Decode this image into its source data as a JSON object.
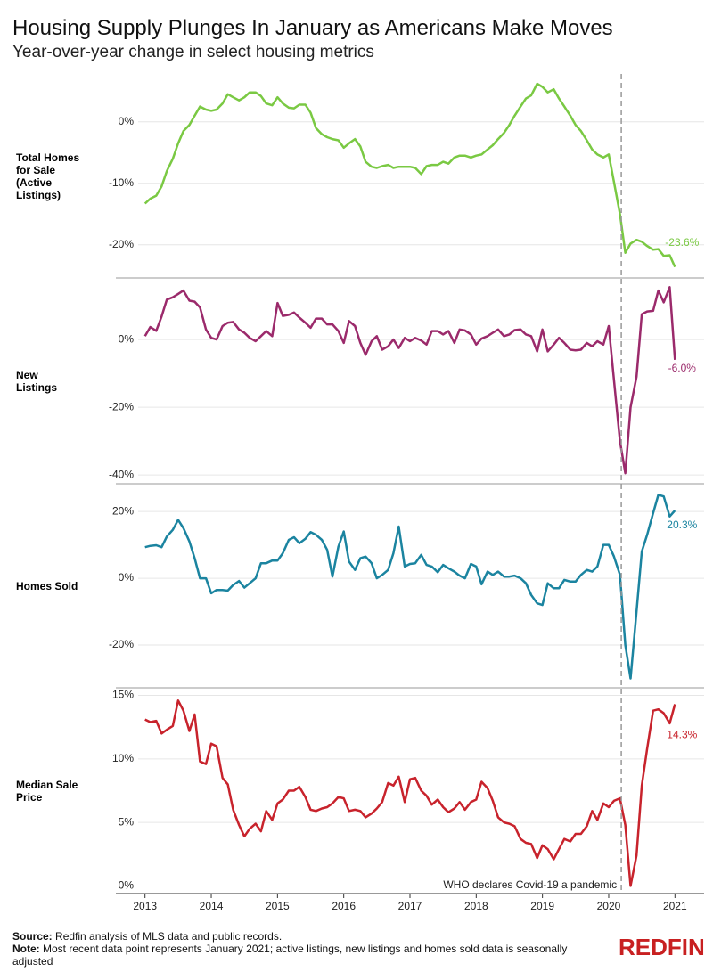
{
  "title": "Housing Supply Plunges In January as Americans Make Moves",
  "subtitle": "Year-over-year change in select housing metrics",
  "annotation": {
    "text": "WHO declares Covid-19 a pandemic",
    "x": 2020.19
  },
  "source_label": "Source:",
  "source": "Redfin analysis of MLS data and public records.",
  "note_label": "Note:",
  "note": "Most recent data point represents January 2021; active listings, new listings and homes sold data is seasonally adjusted",
  "logo": "REDFIN",
  "chart_data": [
    {
      "type": "line",
      "xlim": [
        2012.56,
        2021.44
      ],
      "x": [
        2013,
        2013.08,
        2013.17,
        2013.25,
        2013.33,
        2013.42,
        2013.5,
        2013.58,
        2013.67,
        2013.75,
        2013.83,
        2013.92,
        2014,
        2014.08,
        2014.17,
        2014.25,
        2014.33,
        2014.42,
        2014.5,
        2014.58,
        2014.67,
        2014.75,
        2014.83,
        2014.92,
        2015,
        2015.08,
        2015.17,
        2015.25,
        2015.33,
        2015.42,
        2015.5,
        2015.58,
        2015.67,
        2015.75,
        2015.83,
        2015.92,
        2016,
        2016.08,
        2016.17,
        2016.25,
        2016.33,
        2016.42,
        2016.5,
        2016.58,
        2016.67,
        2016.75,
        2016.83,
        2016.92,
        2017,
        2017.08,
        2017.17,
        2017.25,
        2017.33,
        2017.42,
        2017.5,
        2017.58,
        2017.67,
        2017.75,
        2017.83,
        2017.92,
        2018,
        2018.08,
        2018.17,
        2018.25,
        2018.33,
        2018.42,
        2018.5,
        2018.58,
        2018.67,
        2018.75,
        2018.83,
        2018.92,
        2019,
        2019.08,
        2019.17,
        2019.25,
        2019.33,
        2019.42,
        2019.5,
        2019.58,
        2019.67,
        2019.75,
        2019.83,
        2019.92,
        2020,
        2020.08,
        2020.17,
        2020.25,
        2020.33,
        2020.42,
        2020.5,
        2020.58,
        2020.67,
        2020.75,
        2020.83,
        2020.92,
        2021
      ],
      "series": [
        {
          "name": "Total Homes for Sale (Active Listings)",
          "color": "#7ac943",
          "values": [
            -13.3,
            -12.5,
            -12,
            -10.5,
            -8,
            -6,
            -3.5,
            -1.5,
            -0.5,
            1,
            2.5,
            2,
            1.8,
            2,
            3,
            4.5,
            4,
            3.5,
            4,
            4.8,
            4.8,
            4.2,
            3,
            2.7,
            4,
            3,
            2.3,
            2.2,
            2.8,
            2.8,
            1.5,
            -1,
            -2,
            -2.5,
            -2.8,
            -3,
            -4.2,
            -3.5,
            -2.8,
            -4,
            -6.5,
            -7.3,
            -7.5,
            -7.2,
            -7,
            -7.5,
            -7.3,
            -7.3,
            -7.3,
            -7.5,
            -8.5,
            -7.2,
            -7,
            -7,
            -6.5,
            -6.8,
            -5.8,
            -5.5,
            -5.5,
            -5.8,
            -5.5,
            -5.3,
            -4.5,
            -3.8,
            -2.8,
            -1.8,
            -0.5,
            1,
            2.5,
            3.8,
            4.3,
            6.2,
            5.7,
            4.8,
            5.3,
            3.8,
            2.5,
            1,
            -0.5,
            -1.5,
            -3,
            -4.5,
            -5.3,
            -5.8,
            -5.3,
            -9.8,
            -15,
            -21.3,
            -19.8,
            -19.2,
            -19.5,
            -20.2,
            -20.8,
            -20.7,
            -21.8,
            -21.7,
            -23.6
          ],
          "end_label": "-23.6%"
        }
      ],
      "ylim": [
        -25.4,
        7.8
      ],
      "yticks": [
        {
          "value": 0,
          "label": "0%"
        },
        {
          "value": -10,
          "label": "-10%"
        },
        {
          "value": -20,
          "label": "-20%"
        }
      ]
    },
    {
      "type": "line",
      "xlim": [
        2012.56,
        2021.44
      ],
      "x": [
        2013,
        2013.08,
        2013.17,
        2013.25,
        2013.33,
        2013.42,
        2013.5,
        2013.58,
        2013.67,
        2013.75,
        2013.83,
        2013.92,
        2014,
        2014.08,
        2014.17,
        2014.25,
        2014.33,
        2014.42,
        2014.5,
        2014.58,
        2014.67,
        2014.75,
        2014.83,
        2014.92,
        2015,
        2015.08,
        2015.17,
        2015.25,
        2015.33,
        2015.42,
        2015.5,
        2015.58,
        2015.67,
        2015.75,
        2015.83,
        2015.92,
        2016,
        2016.08,
        2016.17,
        2016.25,
        2016.33,
        2016.42,
        2016.5,
        2016.58,
        2016.67,
        2016.75,
        2016.83,
        2016.92,
        2017,
        2017.08,
        2017.17,
        2017.25,
        2017.33,
        2017.42,
        2017.5,
        2017.58,
        2017.67,
        2017.75,
        2017.83,
        2017.92,
        2018,
        2018.08,
        2018.17,
        2018.25,
        2018.33,
        2018.42,
        2018.5,
        2018.58,
        2018.67,
        2018.75,
        2018.83,
        2018.92,
        2019,
        2019.08,
        2019.17,
        2019.25,
        2019.33,
        2019.42,
        2019.5,
        2019.58,
        2019.67,
        2019.75,
        2019.83,
        2019.92,
        2020,
        2020.08,
        2020.17,
        2020.25,
        2020.33,
        2020.42,
        2020.5,
        2020.58,
        2020.67,
        2020.75,
        2020.83,
        2020.92,
        2021
      ],
      "series": [
        {
          "name": "New Listings",
          "color": "#9b2a6b",
          "values": [
            1,
            3.7,
            2.6,
            6.8,
            11.8,
            12.5,
            13.5,
            14.5,
            11.5,
            11.2,
            9.5,
            3,
            0.5,
            0,
            4,
            5,
            5.2,
            3,
            2,
            0.5,
            -0.5,
            1,
            2.5,
            1,
            10.8,
            7,
            7.3,
            8,
            6.5,
            5,
            3.5,
            6.2,
            6.2,
            4.5,
            4.5,
            2.5,
            -1,
            5.5,
            4,
            -1,
            -4.5,
            -0.5,
            1,
            -3,
            -2,
            0,
            -2.5,
            0.5,
            -0.5,
            0.5,
            -0.3,
            -1.5,
            2.5,
            2.5,
            1.5,
            2.5,
            -1,
            3,
            2.7,
            1.5,
            -1.5,
            0.3,
            1,
            2,
            3,
            1,
            1.5,
            2.8,
            3,
            1.5,
            1,
            -3.5,
            3,
            -3.5,
            -1.5,
            0.5,
            -1,
            -3,
            -3.2,
            -3,
            -1,
            -2,
            -0.5,
            -1.5,
            4,
            -12,
            -30,
            -39.5,
            -20,
            -11,
            7.5,
            8.3,
            8.5,
            14.5,
            11,
            15.5,
            -6
          ],
          "end_label": "-6.0%"
        }
      ],
      "ylim": [
        -42.6,
        18.2
      ],
      "yticks": [
        {
          "value": 0,
          "label": "0%"
        },
        {
          "value": -20,
          "label": "-20%"
        },
        {
          "value": -40,
          "label": "-40%"
        }
      ]
    },
    {
      "type": "line",
      "xlim": [
        2012.56,
        2021.44
      ],
      "x": [
        2013,
        2013.08,
        2013.17,
        2013.25,
        2013.33,
        2013.42,
        2013.5,
        2013.58,
        2013.67,
        2013.75,
        2013.83,
        2013.92,
        2014,
        2014.08,
        2014.17,
        2014.25,
        2014.33,
        2014.42,
        2014.5,
        2014.58,
        2014.67,
        2014.75,
        2014.83,
        2014.92,
        2015,
        2015.08,
        2015.17,
        2015.25,
        2015.33,
        2015.42,
        2015.5,
        2015.58,
        2015.67,
        2015.75,
        2015.83,
        2015.92,
        2016,
        2016.08,
        2016.17,
        2016.25,
        2016.33,
        2016.42,
        2016.5,
        2016.58,
        2016.67,
        2016.75,
        2016.83,
        2016.92,
        2017,
        2017.08,
        2017.17,
        2017.25,
        2017.33,
        2017.42,
        2017.5,
        2017.58,
        2017.67,
        2017.75,
        2017.83,
        2017.92,
        2018,
        2018.08,
        2018.17,
        2018.25,
        2018.33,
        2018.42,
        2018.5,
        2018.58,
        2018.67,
        2018.75,
        2018.83,
        2018.92,
        2019,
        2019.08,
        2019.17,
        2019.25,
        2019.33,
        2019.42,
        2019.5,
        2019.58,
        2019.67,
        2019.75,
        2019.83,
        2019.92,
        2020,
        2020.08,
        2020.17,
        2020.25,
        2020.33,
        2020.42,
        2020.5,
        2020.58,
        2020.67,
        2020.75,
        2020.83,
        2020.92,
        2021
      ],
      "series": [
        {
          "name": "Homes Sold",
          "color": "#1b84a0",
          "values": [
            9.3,
            9.7,
            9.9,
            9.3,
            12.5,
            14.5,
            17.5,
            15,
            11,
            6,
            0,
            0,
            -4.5,
            -3.5,
            -3.5,
            -3.7,
            -2,
            -0.8,
            -2.8,
            -1.5,
            0,
            4.5,
            4.5,
            5.3,
            5.3,
            7.5,
            11.5,
            12.3,
            10.5,
            11.8,
            13.8,
            13,
            11.5,
            8.5,
            0.5,
            9.5,
            14,
            5,
            2.5,
            6,
            6.5,
            4.5,
            0,
            1,
            2.5,
            7.5,
            15.5,
            3.5,
            4.3,
            4.5,
            7,
            4,
            3.5,
            1.8,
            4,
            3,
            2,
            0.8,
            0,
            4.3,
            3.5,
            -1.8,
            2,
            1,
            2,
            0.5,
            0.5,
            0.8,
            0,
            -1.5,
            -5,
            -7.5,
            -8,
            -1.5,
            -3,
            -3,
            -0.5,
            -1,
            -1,
            1,
            2.5,
            2,
            3.5,
            10,
            10,
            6.5,
            1,
            -20,
            -30,
            -10,
            8,
            13,
            19.5,
            25,
            24.5,
            18.5,
            20.3
          ],
          "end_label": "20.3%"
        }
      ],
      "ylim": [
        -32.8,
        28.3
      ],
      "yticks": [
        {
          "value": 20,
          "label": "20%"
        },
        {
          "value": 0,
          "label": "0%"
        },
        {
          "value": -20,
          "label": "-20%"
        }
      ]
    },
    {
      "type": "line",
      "xlim": [
        2012.56,
        2021.44
      ],
      "xticks": [
        2013,
        2014,
        2015,
        2016,
        2017,
        2018,
        2019,
        2020,
        2021
      ],
      "x": [
        2013,
        2013.08,
        2013.17,
        2013.25,
        2013.33,
        2013.42,
        2013.5,
        2013.58,
        2013.67,
        2013.75,
        2013.83,
        2013.92,
        2014,
        2014.08,
        2014.17,
        2014.25,
        2014.33,
        2014.42,
        2014.5,
        2014.58,
        2014.67,
        2014.75,
        2014.83,
        2014.92,
        2015,
        2015.08,
        2015.17,
        2015.25,
        2015.33,
        2015.42,
        2015.5,
        2015.58,
        2015.67,
        2015.75,
        2015.83,
        2015.92,
        2016,
        2016.08,
        2016.17,
        2016.25,
        2016.33,
        2016.42,
        2016.5,
        2016.58,
        2016.67,
        2016.75,
        2016.83,
        2016.92,
        2017,
        2017.08,
        2017.17,
        2017.25,
        2017.33,
        2017.42,
        2017.5,
        2017.58,
        2017.67,
        2017.75,
        2017.83,
        2017.92,
        2018,
        2018.08,
        2018.17,
        2018.25,
        2018.33,
        2018.42,
        2018.5,
        2018.58,
        2018.67,
        2018.75,
        2018.83,
        2018.92,
        2019,
        2019.08,
        2019.17,
        2019.25,
        2019.33,
        2019.42,
        2019.5,
        2019.58,
        2019.67,
        2019.75,
        2019.83,
        2019.92,
        2020,
        2020.08,
        2020.17,
        2020.25,
        2020.33,
        2020.42,
        2020.5,
        2020.58,
        2020.67,
        2020.75,
        2020.83,
        2020.92,
        2021
      ],
      "series": [
        {
          "name": "Median Sale Price",
          "color": "#c8232c",
          "values": [
            13.1,
            12.9,
            13,
            12,
            12.3,
            12.6,
            14.6,
            13.8,
            12.2,
            13.5,
            9.8,
            9.6,
            11.2,
            11,
            8.5,
            8,
            6,
            4.8,
            3.9,
            4.5,
            4.9,
            4.3,
            5.9,
            5.2,
            6.5,
            6.8,
            7.5,
            7.5,
            7.8,
            7,
            6,
            5.9,
            6.1,
            6.2,
            6.5,
            7,
            6.9,
            5.9,
            6,
            5.9,
            5.4,
            5.7,
            6.1,
            6.6,
            8.1,
            7.9,
            8.6,
            6.6,
            8.4,
            8.5,
            7.5,
            7.1,
            6.4,
            6.8,
            6.2,
            5.8,
            6.1,
            6.6,
            6,
            6.6,
            6.8,
            8.2,
            7.7,
            6.7,
            5.4,
            5,
            4.9,
            4.7,
            3.7,
            3.4,
            3.3,
            2.2,
            3.2,
            2.9,
            2.1,
            2.9,
            3.7,
            3.5,
            4.1,
            4.1,
            4.7,
            5.9,
            5.2,
            6.5,
            6.2,
            6.7,
            6.9,
            4.8,
            0,
            2.4,
            7.9,
            10.8,
            13.8,
            13.9,
            13.6,
            12.8,
            14.3
          ],
          "end_label": "14.3%"
        }
      ],
      "ylim": [
        -0.6,
        15.6
      ],
      "yticks": [
        {
          "value": 15,
          "label": "15%"
        },
        {
          "value": 10,
          "label": "10%"
        },
        {
          "value": 5,
          "label": "5%"
        },
        {
          "value": 0,
          "label": "0%"
        }
      ]
    }
  ]
}
